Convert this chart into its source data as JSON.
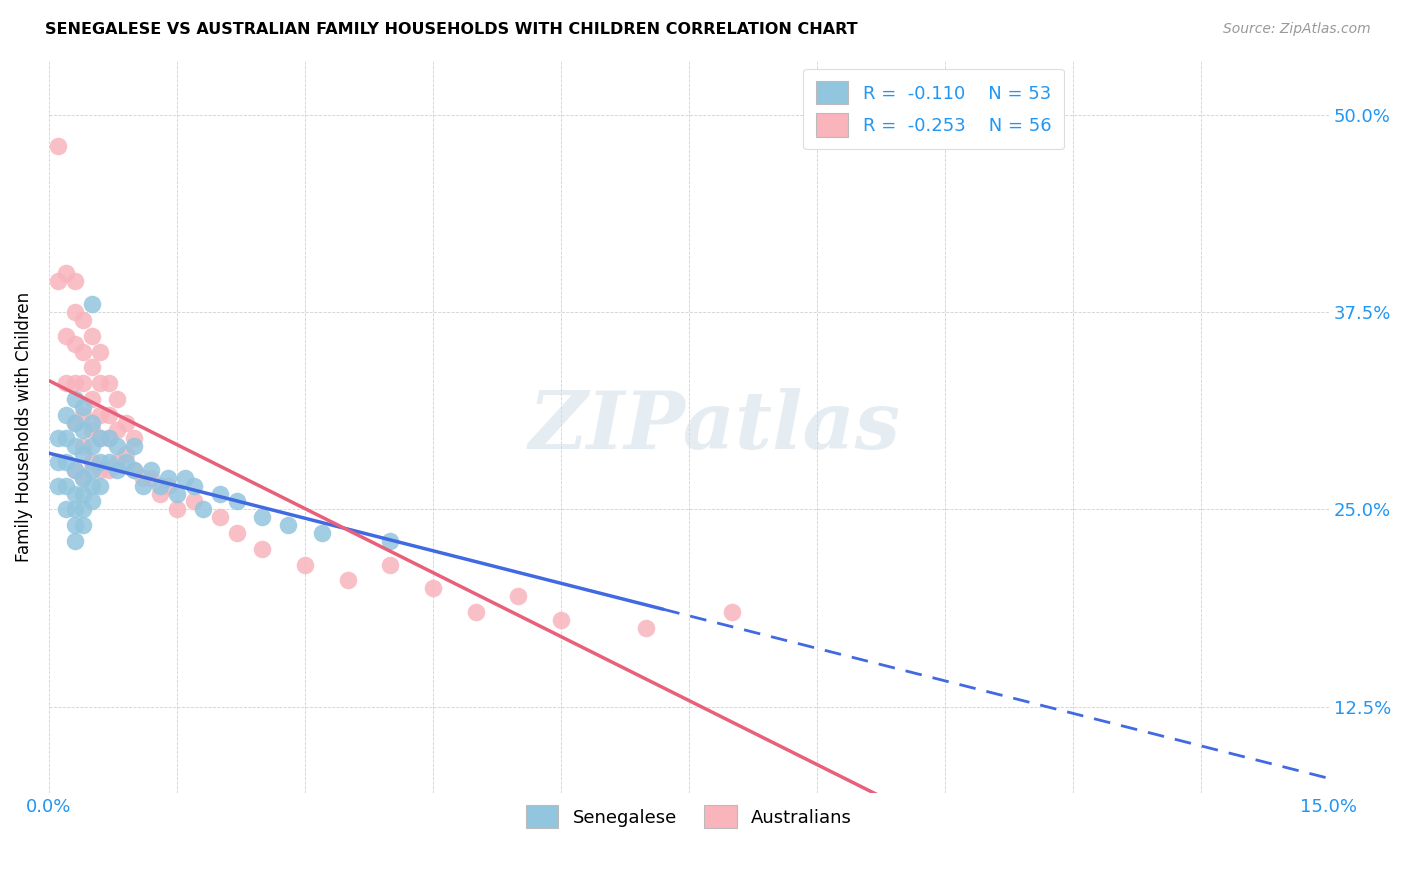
{
  "title": "SENEGALESE VS AUSTRALIAN FAMILY HOUSEHOLDS WITH CHILDREN CORRELATION CHART",
  "source": "Source: ZipAtlas.com",
  "ylabel": "Family Households with Children",
  "ytick_labels": [
    "12.5%",
    "25.0%",
    "37.5%",
    "50.0%"
  ],
  "ytick_values": [
    0.125,
    0.25,
    0.375,
    0.5
  ],
  "xmin": 0.0,
  "xmax": 0.15,
  "ymin": 0.07,
  "ymax": 0.535,
  "color_senegalese": "#92C5DE",
  "color_australians": "#F9B4BC",
  "color_line_senegalese": "#4169E1",
  "color_line_australians": "#E8607A",
  "watermark_text": "ZIPatlas",
  "legend_label1": "Senegalese",
  "legend_label2": "Australians",
  "legend_r1": "R =  -0.110",
  "legend_n1": "N = 53",
  "legend_r2": "R =  -0.253",
  "legend_n2": "N = 56",
  "senegalese_x": [
    0.001,
    0.001,
    0.001,
    0.002,
    0.002,
    0.002,
    0.002,
    0.002,
    0.003,
    0.003,
    0.003,
    0.003,
    0.003,
    0.003,
    0.003,
    0.003,
    0.004,
    0.004,
    0.004,
    0.004,
    0.004,
    0.004,
    0.004,
    0.005,
    0.005,
    0.005,
    0.005,
    0.005,
    0.005,
    0.006,
    0.006,
    0.006,
    0.007,
    0.007,
    0.008,
    0.008,
    0.009,
    0.01,
    0.01,
    0.011,
    0.012,
    0.013,
    0.014,
    0.015,
    0.016,
    0.017,
    0.018,
    0.02,
    0.022,
    0.025,
    0.028,
    0.032,
    0.04
  ],
  "senegalese_y": [
    0.295,
    0.28,
    0.265,
    0.31,
    0.295,
    0.28,
    0.265,
    0.25,
    0.32,
    0.305,
    0.29,
    0.275,
    0.26,
    0.25,
    0.24,
    0.23,
    0.315,
    0.3,
    0.285,
    0.27,
    0.26,
    0.25,
    0.24,
    0.38,
    0.305,
    0.29,
    0.275,
    0.265,
    0.255,
    0.295,
    0.28,
    0.265,
    0.295,
    0.28,
    0.29,
    0.275,
    0.28,
    0.29,
    0.275,
    0.265,
    0.275,
    0.265,
    0.27,
    0.26,
    0.27,
    0.265,
    0.25,
    0.26,
    0.255,
    0.245,
    0.24,
    0.235,
    0.23
  ],
  "australians_x": [
    0.001,
    0.001,
    0.002,
    0.002,
    0.002,
    0.003,
    0.003,
    0.003,
    0.003,
    0.003,
    0.003,
    0.004,
    0.004,
    0.004,
    0.004,
    0.004,
    0.004,
    0.005,
    0.005,
    0.005,
    0.005,
    0.005,
    0.006,
    0.006,
    0.006,
    0.006,
    0.006,
    0.007,
    0.007,
    0.007,
    0.007,
    0.008,
    0.008,
    0.008,
    0.009,
    0.009,
    0.01,
    0.01,
    0.011,
    0.012,
    0.013,
    0.014,
    0.015,
    0.017,
    0.02,
    0.022,
    0.025,
    0.03,
    0.035,
    0.04,
    0.045,
    0.05,
    0.055,
    0.06,
    0.07,
    0.08
  ],
  "australians_y": [
    0.48,
    0.395,
    0.4,
    0.36,
    0.33,
    0.395,
    0.375,
    0.355,
    0.33,
    0.305,
    0.275,
    0.37,
    0.35,
    0.33,
    0.31,
    0.29,
    0.27,
    0.36,
    0.34,
    0.32,
    0.3,
    0.28,
    0.35,
    0.33,
    0.31,
    0.295,
    0.275,
    0.33,
    0.31,
    0.295,
    0.275,
    0.32,
    0.3,
    0.28,
    0.305,
    0.285,
    0.295,
    0.275,
    0.27,
    0.27,
    0.26,
    0.265,
    0.25,
    0.255,
    0.245,
    0.235,
    0.225,
    0.215,
    0.205,
    0.215,
    0.2,
    0.185,
    0.195,
    0.18,
    0.175,
    0.185
  ]
}
